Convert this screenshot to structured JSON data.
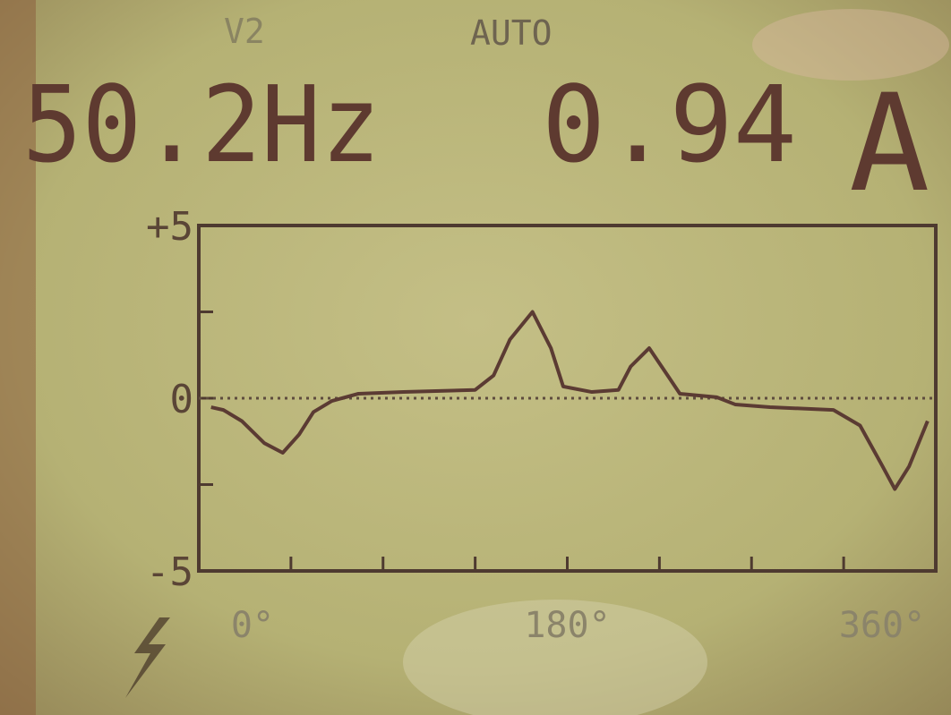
{
  "header": {
    "channel": "V2",
    "mode": "AUTO",
    "frequency": "50.2Hz",
    "reading": "0.94",
    "unit": "A"
  },
  "chart_data": {
    "type": "line",
    "x": [
      6,
      12,
      21,
      32,
      41,
      49,
      56,
      65,
      78,
      100,
      135,
      144,
      152,
      163,
      172,
      178,
      192,
      205,
      211,
      220,
      229,
      235,
      253,
      262,
      279,
      310,
      323,
      334,
      340,
      347,
      356
    ],
    "series": [
      {
        "color": "#5b3b33",
        "values": [
          -0.26,
          -0.34,
          -0.66,
          -1.3,
          -1.58,
          -1.05,
          -0.4,
          -0.08,
          0.13,
          0.18,
          0.24,
          0.66,
          1.7,
          2.5,
          1.45,
          0.34,
          0.18,
          0.24,
          0.92,
          1.45,
          0.66,
          0.13,
          0.03,
          -0.18,
          -0.26,
          -0.34,
          -0.79,
          -1.97,
          -2.63,
          -1.97,
          -0.66
        ]
      }
    ],
    "xlim": [
      0,
      360
    ],
    "xticks": [
      {
        "value": 0,
        "label": "0°"
      },
      {
        "value": 180,
        "label": "180°"
      },
      {
        "value": 360,
        "label": "360°"
      }
    ],
    "xminorticks": [
      45,
      90,
      135,
      225,
      270,
      315
    ],
    "ylim": [
      -5,
      5
    ],
    "yticks": [
      {
        "value": 5,
        "label": "+5"
      },
      0,
      -5
    ],
    "yminorticks": [
      2.5,
      -2.5
    ],
    "zero_line": true
  }
}
